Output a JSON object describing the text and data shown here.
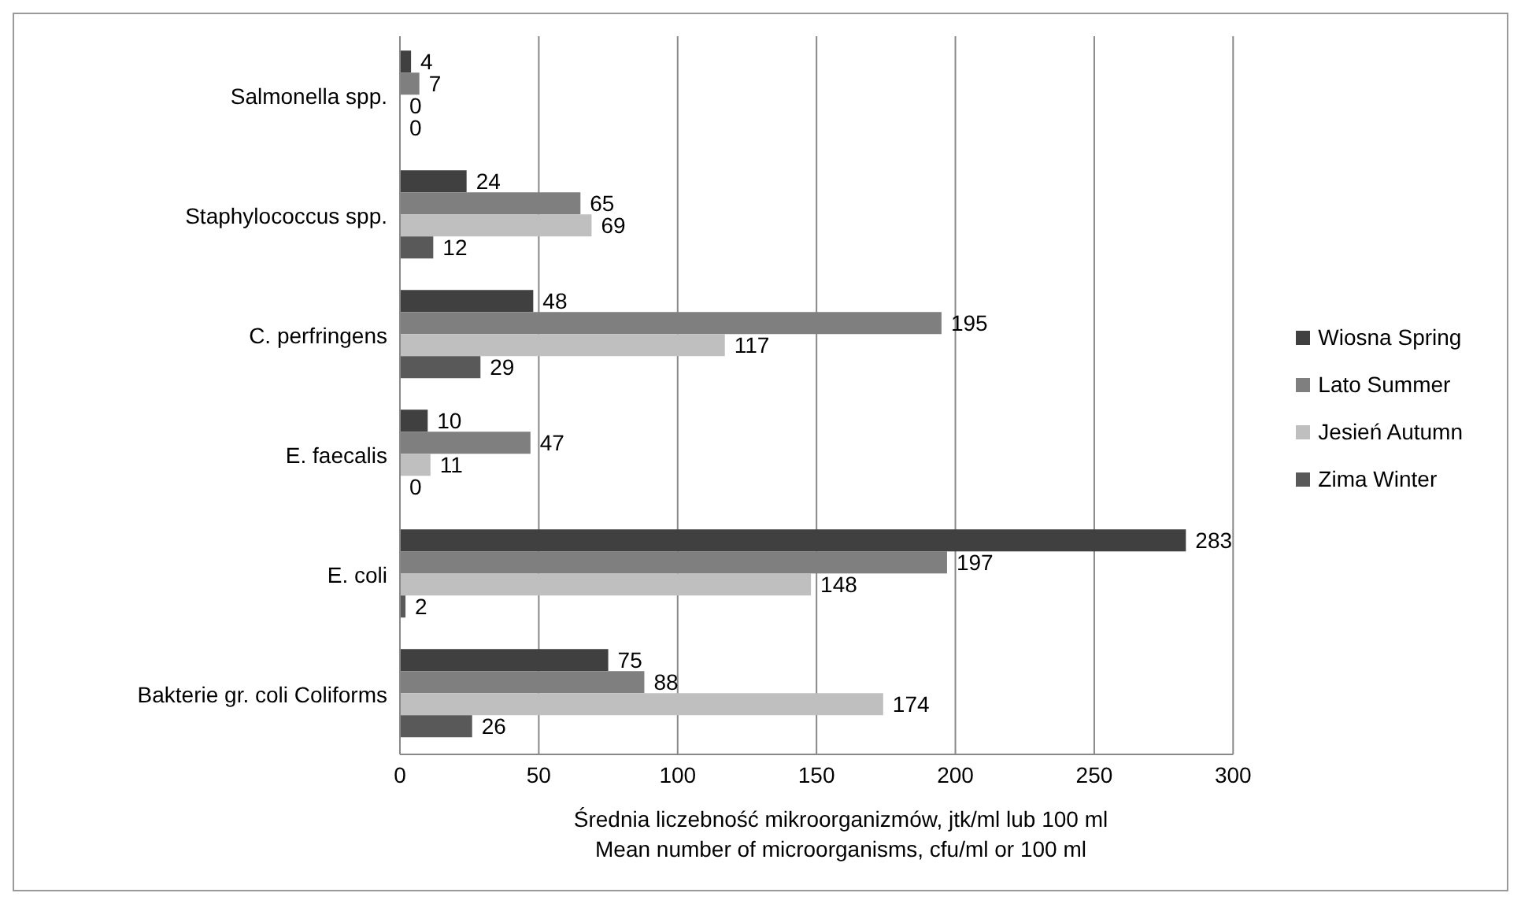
{
  "chart_data": {
    "type": "bar",
    "orientation": "horizontal",
    "categories": [
      "Salmonella spp.",
      "Staphylococcus spp.",
      "C. perfringens",
      "E. faecalis",
      "E. coli",
      "Bakterie gr. coli Coliforms"
    ],
    "series": [
      {
        "name": "Wiosna Spring",
        "color": "#404040",
        "values": [
          4,
          24,
          48,
          10,
          283,
          75
        ]
      },
      {
        "name": "Lato Summer",
        "color": "#7f7f7f",
        "values": [
          7,
          65,
          195,
          47,
          197,
          88
        ]
      },
      {
        "name": "Jesień Autumn",
        "color": "#bfbfbf",
        "values": [
          0,
          69,
          117,
          11,
          148,
          174
        ]
      },
      {
        "name": "Zima Winter",
        "color": "#595959",
        "values": [
          0,
          12,
          29,
          0,
          2,
          26
        ]
      }
    ],
    "xlim": [
      0,
      300
    ],
    "xticks": [
      0,
      50,
      100,
      150,
      200,
      250,
      300
    ],
    "grid": "x",
    "legend": "right",
    "data_labels": true,
    "xlabel": "Średnia liczebność mikroorganizmów, jtk/ml lub 100 ml\nMean number of microorganisms, cfu/ml or 100 ml"
  }
}
